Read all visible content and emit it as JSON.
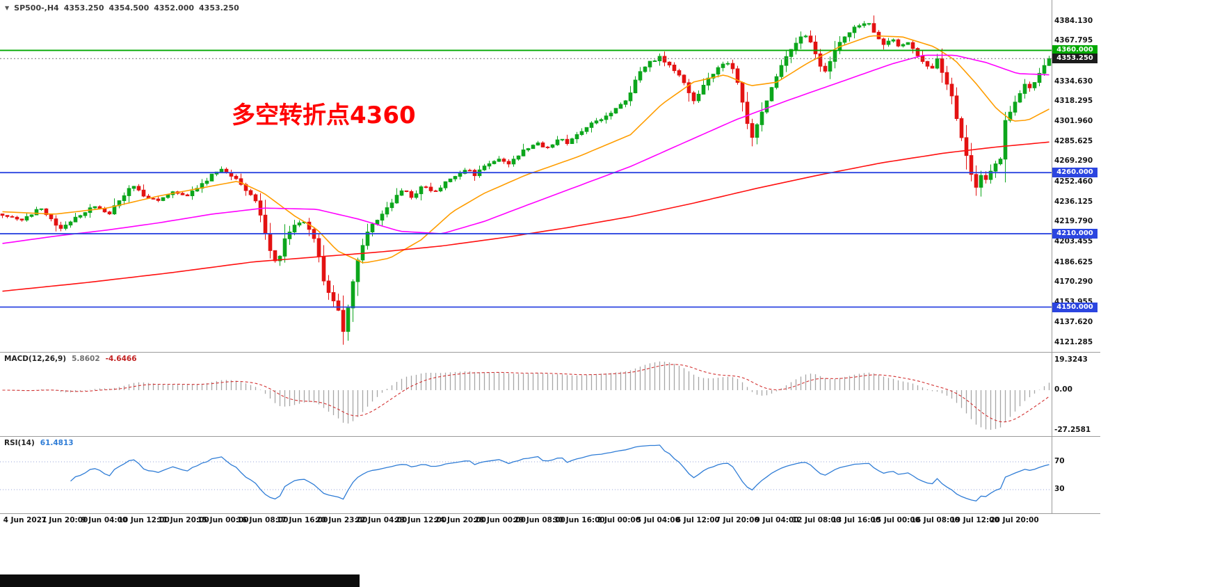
{
  "header": {
    "dropdown_icon": "▼",
    "symbol": "SP500-,H4",
    "open": "4353.250",
    "high": "4354.500",
    "low": "4352.000",
    "close": "4353.250"
  },
  "annotation": {
    "text": "多空转折点4360",
    "color": "#ff0000"
  },
  "chart_data": {
    "type": "candlestick",
    "title": "SP500- H4",
    "ylim": [
      4121.285,
      4384.13
    ],
    "bar_count": 216,
    "up_color": "#0ca61c",
    "down_color": "#e31212",
    "y_tick_labels": [
      "4384.130",
      "4367.795",
      "4334.630",
      "4318.295",
      "4301.960",
      "4285.625",
      "4269.290",
      "4252.460",
      "4236.125",
      "4219.790",
      "4203.455",
      "4186.625",
      "4170.290",
      "4153.955",
      "4137.620",
      "4121.285"
    ],
    "x_tick_labels": [
      "4 Jun 2021",
      "7 Jun 20:00",
      "9 Jun 04:00",
      "10 Jun 12:00",
      "11 Jun 20:00",
      "15 Jun 00:00",
      "16 Jun 08:00",
      "17 Jun 16:00",
      "20 Jun 23:00",
      "22 Jun 04:00",
      "23 Jun 12:00",
      "24 Jun 20:00",
      "28 Jun 00:00",
      "29 Jun 08:00",
      "30 Jun 16:00",
      "2 Jul 00:00",
      "5 Jul 04:00",
      "6 Jul 12:00",
      "7 Jul 20:00",
      "9 Jul 04:00",
      "12 Jul 08:00",
      "13 Jul 16:00",
      "15 Jul 00:00",
      "16 Jul 08:00",
      "19 Jul 12:00",
      "20 Jul 20:00"
    ],
    "horizontal_lines": [
      {
        "value": 4360,
        "label": "4360.000",
        "color": "#00A800",
        "role": "resistance"
      },
      {
        "value": 4260,
        "label": "4260.000",
        "color": "#2B45E0",
        "role": "support"
      },
      {
        "value": 4210,
        "label": "4210.000",
        "color": "#2B45E0",
        "role": "support"
      },
      {
        "value": 4150,
        "label": "4150.000",
        "color": "#2B45E0",
        "role": "support"
      }
    ],
    "current_price": {
      "value": 4353.25,
      "label": "4353.250",
      "tag_bg": "#1c1c1c"
    },
    "price_path_anchors": [
      [
        0,
        4226
      ],
      [
        0.018,
        4220
      ],
      [
        0.035,
        4231
      ],
      [
        0.055,
        4215
      ],
      [
        0.072,
        4224
      ],
      [
        0.088,
        4233
      ],
      [
        0.102,
        4227
      ],
      [
        0.115,
        4240
      ],
      [
        0.124,
        4251
      ],
      [
        0.134,
        4242
      ],
      [
        0.148,
        4236
      ],
      [
        0.162,
        4245
      ],
      [
        0.176,
        4241
      ],
      [
        0.19,
        4250
      ],
      [
        0.2,
        4258
      ],
      [
        0.21,
        4263
      ],
      [
        0.222,
        4255
      ],
      [
        0.232,
        4246
      ],
      [
        0.242,
        4236
      ],
      [
        0.25,
        4215
      ],
      [
        0.257,
        4192
      ],
      [
        0.263,
        4186
      ],
      [
        0.27,
        4207
      ],
      [
        0.278,
        4216
      ],
      [
        0.287,
        4221
      ],
      [
        0.294,
        4213
      ],
      [
        0.3,
        4202
      ],
      [
        0.307,
        4172
      ],
      [
        0.314,
        4158
      ],
      [
        0.32,
        4150
      ],
      [
        0.326,
        4128
      ],
      [
        0.332,
        4158
      ],
      [
        0.338,
        4184
      ],
      [
        0.346,
        4206
      ],
      [
        0.354,
        4218
      ],
      [
        0.364,
        4228
      ],
      [
        0.374,
        4238
      ],
      [
        0.383,
        4246
      ],
      [
        0.392,
        4240
      ],
      [
        0.402,
        4249
      ],
      [
        0.412,
        4244
      ],
      [
        0.422,
        4251
      ],
      [
        0.432,
        4257
      ],
      [
        0.442,
        4263
      ],
      [
        0.452,
        4258
      ],
      [
        0.462,
        4266
      ],
      [
        0.472,
        4271
      ],
      [
        0.482,
        4267
      ],
      [
        0.492,
        4274
      ],
      [
        0.502,
        4280
      ],
      [
        0.512,
        4284
      ],
      [
        0.522,
        4279
      ],
      [
        0.532,
        4288
      ],
      [
        0.54,
        4283
      ],
      [
        0.55,
        4293
      ],
      [
        0.562,
        4299
      ],
      [
        0.575,
        4306
      ],
      [
        0.588,
        4313
      ],
      [
        0.598,
        4322
      ],
      [
        0.608,
        4342
      ],
      [
        0.618,
        4351
      ],
      [
        0.628,
        4354
      ],
      [
        0.638,
        4347
      ],
      [
        0.648,
        4338
      ],
      [
        0.655,
        4327
      ],
      [
        0.661,
        4318
      ],
      [
        0.668,
        4329
      ],
      [
        0.676,
        4339
      ],
      [
        0.684,
        4346
      ],
      [
        0.692,
        4351
      ],
      [
        0.698,
        4344
      ],
      [
        0.704,
        4331
      ],
      [
        0.71,
        4303
      ],
      [
        0.716,
        4289
      ],
      [
        0.722,
        4301
      ],
      [
        0.729,
        4317
      ],
      [
        0.736,
        4332
      ],
      [
        0.744,
        4347
      ],
      [
        0.752,
        4359
      ],
      [
        0.76,
        4369
      ],
      [
        0.768,
        4373
      ],
      [
        0.774,
        4364
      ],
      [
        0.78,
        4349
      ],
      [
        0.786,
        4343
      ],
      [
        0.793,
        4356
      ],
      [
        0.802,
        4369
      ],
      [
        0.812,
        4377
      ],
      [
        0.82,
        4381
      ],
      [
        0.827,
        4384
      ],
      [
        0.834,
        4371
      ],
      [
        0.842,
        4364
      ],
      [
        0.85,
        4370
      ],
      [
        0.857,
        4361
      ],
      [
        0.864,
        4368
      ],
      [
        0.872,
        4359
      ],
      [
        0.88,
        4351
      ],
      [
        0.887,
        4345
      ],
      [
        0.893,
        4352
      ],
      [
        0.9,
        4338
      ],
      [
        0.907,
        4322
      ],
      [
        0.913,
        4299
      ],
      [
        0.919,
        4281
      ],
      [
        0.925,
        4261
      ],
      [
        0.93,
        4247
      ],
      [
        0.936,
        4259
      ],
      [
        0.941,
        4251
      ],
      [
        0.947,
        4269
      ],
      [
        0.952,
        4261
      ],
      [
        0.958,
        4303
      ],
      [
        0.964,
        4312
      ],
      [
        0.97,
        4321
      ],
      [
        0.977,
        4333
      ],
      [
        0.983,
        4327
      ],
      [
        0.99,
        4341
      ],
      [
        0.996,
        4349
      ],
      [
        1,
        4353.25
      ]
    ],
    "moving_averages": [
      {
        "name": "ma-fast-line",
        "color": "#ff9d00",
        "anchors": [
          [
            0,
            4228
          ],
          [
            0.05,
            4226
          ],
          [
            0.1,
            4231
          ],
          [
            0.15,
            4241
          ],
          [
            0.2,
            4249
          ],
          [
            0.225,
            4253
          ],
          [
            0.25,
            4243
          ],
          [
            0.28,
            4224
          ],
          [
            0.3,
            4214
          ],
          [
            0.32,
            4196
          ],
          [
            0.345,
            4186
          ],
          [
            0.37,
            4190
          ],
          [
            0.4,
            4205
          ],
          [
            0.43,
            4228
          ],
          [
            0.46,
            4243
          ],
          [
            0.5,
            4258
          ],
          [
            0.55,
            4273
          ],
          [
            0.6,
            4291
          ],
          [
            0.63,
            4316
          ],
          [
            0.66,
            4334
          ],
          [
            0.69,
            4340
          ],
          [
            0.715,
            4331
          ],
          [
            0.74,
            4334
          ],
          [
            0.77,
            4350
          ],
          [
            0.8,
            4363
          ],
          [
            0.83,
            4372
          ],
          [
            0.86,
            4371
          ],
          [
            0.89,
            4363
          ],
          [
            0.91,
            4352
          ],
          [
            0.93,
            4333
          ],
          [
            0.95,
            4312
          ],
          [
            0.965,
            4302
          ],
          [
            0.98,
            4303
          ],
          [
            1,
            4312
          ]
        ]
      },
      {
        "name": "ma-mid-line",
        "color": "#ff00ff",
        "anchors": [
          [
            0,
            4202
          ],
          [
            0.05,
            4208
          ],
          [
            0.1,
            4213
          ],
          [
            0.15,
            4219
          ],
          [
            0.2,
            4226
          ],
          [
            0.25,
            4231
          ],
          [
            0.3,
            4230
          ],
          [
            0.34,
            4222
          ],
          [
            0.38,
            4212
          ],
          [
            0.42,
            4210
          ],
          [
            0.46,
            4220
          ],
          [
            0.5,
            4233
          ],
          [
            0.55,
            4249
          ],
          [
            0.6,
            4265
          ],
          [
            0.65,
            4284
          ],
          [
            0.7,
            4303
          ],
          [
            0.75,
            4319
          ],
          [
            0.8,
            4334
          ],
          [
            0.85,
            4349
          ],
          [
            0.88,
            4356
          ],
          [
            0.91,
            4356
          ],
          [
            0.94,
            4350
          ],
          [
            0.97,
            4341
          ],
          [
            1,
            4340
          ]
        ]
      },
      {
        "name": "ma-slow-line",
        "color": "#ff1010",
        "anchors": [
          [
            0,
            4163
          ],
          [
            0.08,
            4170
          ],
          [
            0.16,
            4178
          ],
          [
            0.24,
            4187
          ],
          [
            0.3,
            4191
          ],
          [
            0.36,
            4195
          ],
          [
            0.42,
            4200
          ],
          [
            0.48,
            4207
          ],
          [
            0.54,
            4215
          ],
          [
            0.6,
            4224
          ],
          [
            0.66,
            4235
          ],
          [
            0.72,
            4247
          ],
          [
            0.78,
            4258
          ],
          [
            0.84,
            4268
          ],
          [
            0.9,
            4276
          ],
          [
            0.95,
            4281
          ],
          [
            1,
            4285
          ]
        ]
      }
    ],
    "macd": {
      "title": "MACD(12,26,9)",
      "main_value": "5.8602",
      "signal_value": "-4.6466",
      "fast": 12,
      "slow": 26,
      "signal": 9,
      "axis_labels": [
        "19.3243",
        "0.00",
        "-27.2581"
      ],
      "histogram_color": "#a6a6a6",
      "signal_color": "#d23030"
    },
    "rsi": {
      "title": "RSI(14)",
      "value": "61.4813",
      "period": 14,
      "levels": [
        70,
        30
      ],
      "axis_labels": [
        "70",
        "30"
      ],
      "line_color": "#2e7cd6",
      "level_line_color": "#95a3d8"
    }
  }
}
